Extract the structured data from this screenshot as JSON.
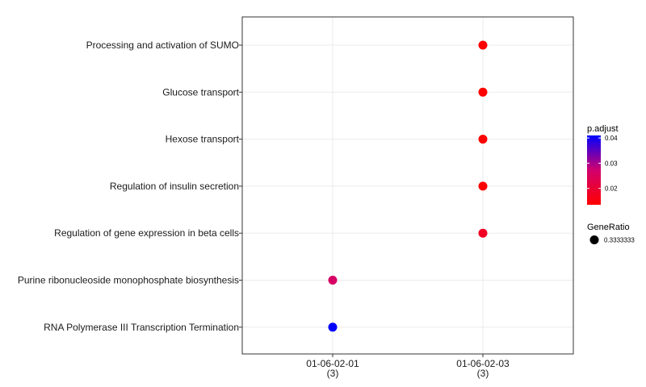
{
  "chart_data": {
    "type": "scatter",
    "x_categories": [
      {
        "label": "01-06-02-01",
        "count": "(3)"
      },
      {
        "label": "01-06-02-03",
        "count": "(3)"
      }
    ],
    "y_categories": [
      "Processing and activation of SUMO",
      "Glucose transport",
      "Hexose transport",
      "Regulation of insulin secretion",
      "Regulation of gene expression in beta cells",
      "Purine ribonucleoside monophosphate biosynthesis",
      "RNA Polymerase III Transcription Termination"
    ],
    "points": [
      {
        "x": "01-06-02-03",
        "y": "Processing and activation of SUMO",
        "p_adjust": 0.0135,
        "gene_ratio": 0.3333333
      },
      {
        "x": "01-06-02-03",
        "y": "Glucose transport",
        "p_adjust": 0.0135,
        "gene_ratio": 0.3333333
      },
      {
        "x": "01-06-02-03",
        "y": "Hexose transport",
        "p_adjust": 0.0135,
        "gene_ratio": 0.3333333
      },
      {
        "x": "01-06-02-03",
        "y": "Regulation of insulin secretion",
        "p_adjust": 0.0135,
        "gene_ratio": 0.3333333
      },
      {
        "x": "01-06-02-03",
        "y": "Regulation of gene expression in beta cells",
        "p_adjust": 0.018,
        "gene_ratio": 0.3333333
      },
      {
        "x": "01-06-02-01",
        "y": "Purine ribonucleoside monophosphate biosynthesis",
        "p_adjust": 0.026,
        "gene_ratio": 0.3333333
      },
      {
        "x": "01-06-02-01",
        "y": "RNA Polymerase III Transcription Termination",
        "p_adjust": 0.041,
        "gene_ratio": 0.3333333
      }
    ],
    "color_legend": {
      "title": "p.adjust",
      "range": [
        0.0135,
        0.041
      ],
      "ticks": [
        0.02,
        0.03,
        0.04
      ],
      "tick_labels": [
        "0.02",
        "0.03",
        "0.04"
      ],
      "low_color": "#ff0000",
      "high_color": "#0000ff"
    },
    "size_legend": {
      "title": "GeneRatio",
      "value_label": "0.3333333"
    },
    "grid": true,
    "legend_position": "right"
  }
}
